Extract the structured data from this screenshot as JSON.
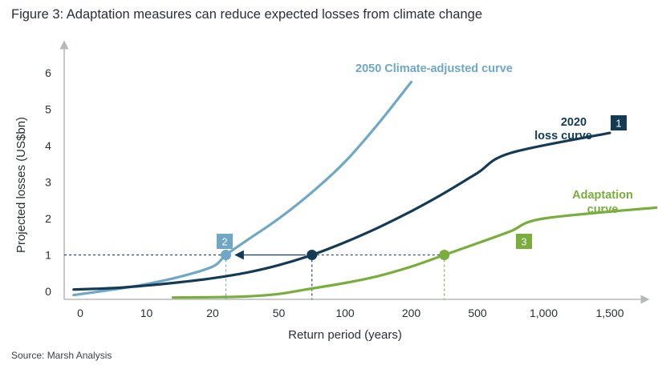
{
  "figure_title": "Figure 3: Adaptation measures can reduce expected losses from climate change",
  "source": "Source: Marsh Analysis",
  "colors": {
    "climate": "#6fa8c7",
    "loss2020": "#143b55",
    "adaptation": "#79ad3c",
    "axis": "#b5b9bd"
  },
  "chart_data": {
    "type": "line",
    "xlabel": "Return period (years)",
    "ylabel": "Projected losses (US$bn)",
    "x_tick_labels": [
      "0",
      "10",
      "20",
      "50",
      "100",
      "200",
      "500",
      "1,000",
      "1,500"
    ],
    "y_tick_labels": [
      "0",
      "1",
      "2",
      "3",
      "4",
      "5",
      "6"
    ],
    "ylim": [
      0,
      6.5
    ],
    "series": [
      {
        "name": "2050 Climate-adjusted curve",
        "label_lines": [
          "2050 Climate-adjusted curve"
        ],
        "color_key": "climate",
        "points": [
          [
            -0.1,
            -0.1
          ],
          [
            0.5,
            0.05
          ],
          [
            1,
            0.2
          ],
          [
            1.5,
            0.4
          ],
          [
            2,
            0.68
          ],
          [
            2.2,
            1.0
          ],
          [
            2.5,
            1.38
          ],
          [
            3,
            2.0
          ],
          [
            3.5,
            2.72
          ],
          [
            4,
            3.56
          ],
          [
            4.5,
            4.6
          ],
          [
            5,
            5.75
          ]
        ]
      },
      {
        "name": "2020 loss curve",
        "label_lines": [
          "2020",
          "loss curve"
        ],
        "color_key": "loss2020",
        "badge": "1",
        "points": [
          [
            -0.1,
            0.05
          ],
          [
            0.5,
            0.09
          ],
          [
            1,
            0.16
          ],
          [
            1.5,
            0.25
          ],
          [
            2,
            0.36
          ],
          [
            2.5,
            0.51
          ],
          [
            3,
            0.72
          ],
          [
            3.5,
            1.0
          ],
          [
            4,
            1.35
          ],
          [
            4.5,
            1.75
          ],
          [
            5,
            2.2
          ],
          [
            5.5,
            2.7
          ],
          [
            6,
            3.25
          ],
          [
            6.5,
            3.8
          ],
          [
            8,
            4.35
          ]
        ]
      },
      {
        "name": "Adaptation curve",
        "label_lines": [
          "Adaptation",
          "curve"
        ],
        "color_key": "adaptation",
        "points": [
          [
            1.4,
            -0.17
          ],
          [
            2,
            -0.16
          ],
          [
            2.5,
            -0.14
          ],
          [
            3,
            -0.07
          ],
          [
            3.5,
            0.08
          ],
          [
            4,
            0.23
          ],
          [
            4.5,
            0.42
          ],
          [
            5,
            0.68
          ],
          [
            5.5,
            1.0
          ],
          [
            6,
            1.32
          ],
          [
            6.5,
            1.65
          ],
          [
            7,
            2.0
          ],
          [
            8.7,
            2.3
          ]
        ]
      }
    ],
    "markers": [
      {
        "badge": "2",
        "x": 2.2,
        "y": 1.0,
        "color_key": "climate"
      },
      {
        "badge": "",
        "x": 3.5,
        "y": 1.0,
        "color_key": "loss2020"
      },
      {
        "badge": "3",
        "x": 5.5,
        "y": 1.0,
        "color_key": "adaptation"
      }
    ]
  }
}
